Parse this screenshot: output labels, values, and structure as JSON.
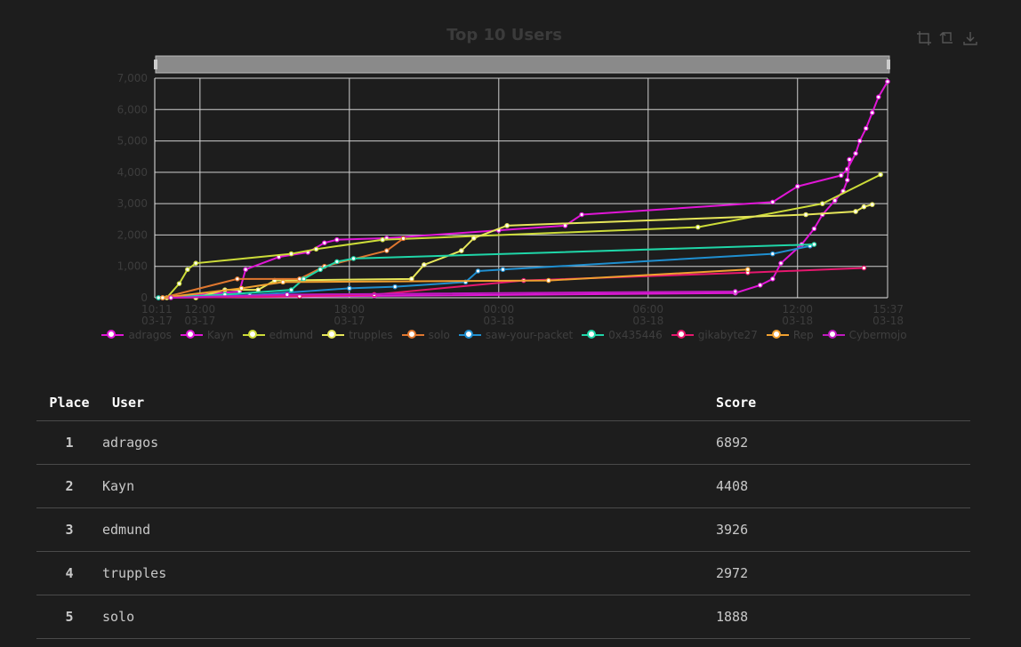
{
  "chart": {
    "title": "Top 10 Users",
    "toolbox": [
      "zoom-icon",
      "zoom-reset-icon",
      "download-icon"
    ]
  },
  "chart_data": {
    "type": "line",
    "title": "Top 10 Users",
    "xlabel": "",
    "ylabel": "",
    "grid": true,
    "legend_position": "bottom",
    "x_range": [
      "03-17 10:11",
      "03-18 15:37"
    ],
    "x_ticks": [
      {
        "time": "10:11",
        "date": "03-17"
      },
      {
        "time": "12:00",
        "date": "03-17"
      },
      {
        "time": "18:00",
        "date": "03-17"
      },
      {
        "time": "00:00",
        "date": "03-18"
      },
      {
        "time": "06:00",
        "date": "03-18"
      },
      {
        "time": "12:00",
        "date": "03-18"
      },
      {
        "time": "15:37",
        "date": "03-18"
      }
    ],
    "y_ticks": [
      "0",
      "1,000",
      "2,000",
      "3,000",
      "4,000",
      "5,000",
      "6,000",
      "7,000"
    ],
    "ylim": [
      0,
      7000
    ],
    "series": [
      {
        "name": "adragos",
        "color": "#e016d6",
        "points": [
          [
            "03-17 10:30",
            0
          ],
          [
            "03-17 13:35",
            200
          ],
          [
            "03-17 13:50",
            900
          ],
          [
            "03-17 15:10",
            1300
          ],
          [
            "03-17 16:20",
            1450
          ],
          [
            "03-17 17:00",
            1750
          ],
          [
            "03-17 17:30",
            1850
          ],
          [
            "03-17 19:30",
            1900
          ],
          [
            "03-18 00:00",
            2150
          ],
          [
            "03-18 02:40",
            2300
          ],
          [
            "03-18 03:20",
            2650
          ],
          [
            "03-18 11:00",
            3050
          ],
          [
            "03-18 12:00",
            3550
          ],
          [
            "03-18 13:45",
            3900
          ],
          [
            "03-18 14:00",
            4100
          ],
          [
            "03-18 14:20",
            4600
          ],
          [
            "03-18 14:30",
            5000
          ],
          [
            "03-18 14:45",
            5400
          ],
          [
            "03-18 15:00",
            5900
          ],
          [
            "03-18 15:15",
            6400
          ],
          [
            "03-18 15:37",
            6892
          ]
        ]
      },
      {
        "name": "Kayn",
        "color": "#e016d6",
        "points": [
          [
            "03-17 10:40",
            0
          ],
          [
            "03-17 19:00",
            60
          ],
          [
            "03-18 09:30",
            150
          ],
          [
            "03-18 10:30",
            400
          ],
          [
            "03-18 11:00",
            600
          ],
          [
            "03-18 11:20",
            1100
          ],
          [
            "03-18 12:10",
            1700
          ],
          [
            "03-18 12:40",
            2200
          ],
          [
            "03-18 13:00",
            2650
          ],
          [
            "03-18 13:30",
            3100
          ],
          [
            "03-18 13:50",
            3400
          ],
          [
            "03-18 14:00",
            3750
          ],
          [
            "03-18 14:05",
            4408
          ]
        ]
      },
      {
        "name": "edmund",
        "color": "#cddc39",
        "points": [
          [
            "03-17 10:40",
            0
          ],
          [
            "03-17 11:10",
            450
          ],
          [
            "03-17 11:30",
            900
          ],
          [
            "03-17 11:50",
            1100
          ],
          [
            "03-17 15:40",
            1400
          ],
          [
            "03-17 16:40",
            1550
          ],
          [
            "03-17 19:20",
            1850
          ],
          [
            "03-18 08:00",
            2250
          ],
          [
            "03-18 13:00",
            3000
          ],
          [
            "03-18 15:20",
            3926
          ]
        ]
      },
      {
        "name": "trupples",
        "color": "#e6e65a",
        "points": [
          [
            "03-17 11:50",
            0
          ],
          [
            "03-17 13:00",
            250
          ],
          [
            "03-17 14:20",
            250
          ],
          [
            "03-17 15:00",
            550
          ],
          [
            "03-17 20:30",
            600
          ],
          [
            "03-17 21:00",
            1050
          ],
          [
            "03-17 22:30",
            1500
          ],
          [
            "03-17 23:00",
            1900
          ],
          [
            "03-18 00:20",
            2300
          ],
          [
            "03-18 12:20",
            2650
          ],
          [
            "03-18 14:20",
            2750
          ],
          [
            "03-18 14:40",
            2900
          ],
          [
            "03-18 15:00",
            2972
          ]
        ]
      },
      {
        "name": "solo",
        "color": "#e0772f",
        "points": [
          [
            "03-17 10:30",
            0
          ],
          [
            "03-17 13:30",
            600
          ],
          [
            "03-17 16:00",
            600
          ],
          [
            "03-17 17:00",
            1000
          ],
          [
            "03-17 19:30",
            1500
          ],
          [
            "03-17 20:10",
            1888
          ]
        ]
      },
      {
        "name": "saw-your-packet",
        "color": "#1f8fd0",
        "points": [
          [
            "03-17 10:20",
            0
          ],
          [
            "03-17 14:00",
            80
          ],
          [
            "03-17 18:00",
            300
          ],
          [
            "03-17 19:50",
            350
          ],
          [
            "03-17 22:40",
            500
          ],
          [
            "03-17 23:10",
            850
          ],
          [
            "03-18 00:10",
            900
          ],
          [
            "03-18 11:00",
            1400
          ],
          [
            "03-18 12:30",
            1650
          ]
        ]
      },
      {
        "name": "0x435446",
        "color": "#1fd6a8",
        "points": [
          [
            "03-17 10:20",
            0
          ],
          [
            "03-17 13:00",
            100
          ],
          [
            "03-17 15:40",
            250
          ],
          [
            "03-17 16:10",
            600
          ],
          [
            "03-17 16:50",
            900
          ],
          [
            "03-17 17:30",
            1150
          ],
          [
            "03-17 18:10",
            1250
          ],
          [
            "03-18 12:40",
            1700
          ]
        ]
      },
      {
        "name": "gikabyte27",
        "color": "#e6176e",
        "points": [
          [
            "03-17 10:30",
            0
          ],
          [
            "03-17 16:00",
            50
          ],
          [
            "03-17 19:00",
            100
          ],
          [
            "03-18 01:00",
            550
          ],
          [
            "03-18 10:00",
            800
          ],
          [
            "03-18 14:40",
            950
          ]
        ]
      },
      {
        "name": "Rep",
        "color": "#f0a030",
        "points": [
          [
            "03-17 10:30",
            0
          ],
          [
            "03-17 13:40",
            300
          ],
          [
            "03-17 15:20",
            500
          ],
          [
            "03-18 02:00",
            550
          ],
          [
            "03-18 10:00",
            900
          ]
        ]
      },
      {
        "name": "Cybermojo",
        "color": "#c01ac0",
        "points": [
          [
            "03-17 10:50",
            0
          ],
          [
            "03-17 15:30",
            100
          ],
          [
            "03-18 09:30",
            200
          ]
        ]
      }
    ]
  },
  "leaderboard": {
    "headers": {
      "place": "Place",
      "user": "User",
      "score": "Score"
    },
    "rows": [
      {
        "place": "1",
        "user": "adragos",
        "score": "6892"
      },
      {
        "place": "2",
        "user": "Kayn",
        "score": "4408"
      },
      {
        "place": "3",
        "user": "edmund",
        "score": "3926"
      },
      {
        "place": "4",
        "user": "trupples",
        "score": "2972"
      },
      {
        "place": "5",
        "user": "solo",
        "score": "1888"
      }
    ]
  }
}
